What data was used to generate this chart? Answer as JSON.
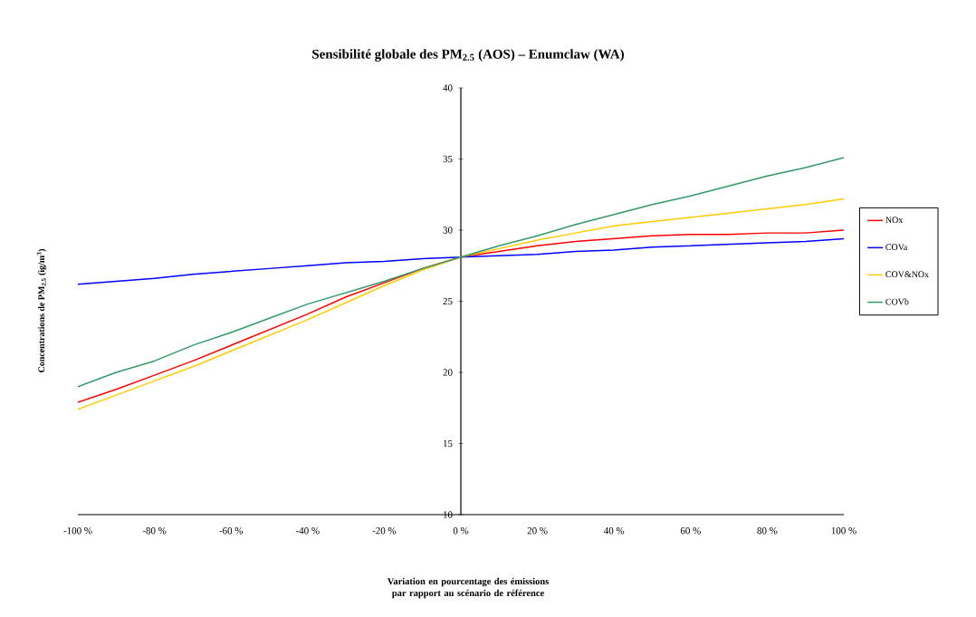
{
  "chart_data": {
    "type": "line",
    "title": "Sensibilité globale des PM$_{2.5}$ (AOS) – Enumclaw (WA)",
    "xlabel": "Variation en pourcentage des émissions par rapport au scénario de référence",
    "ylabel": "Concentrations de PM$_{2.5}$ (ìg/m$^{3}$)",
    "x": [
      -100,
      -90,
      -80,
      -70,
      -60,
      -50,
      -40,
      -30,
      -20,
      -10,
      0,
      10,
      20,
      30,
      40,
      50,
      60,
      70,
      80,
      90,
      100
    ],
    "series": [
      {
        "name": "NOx",
        "color": "#ff0000",
        "values": [
          17.9,
          18.8,
          19.8,
          20.8,
          21.9,
          23.0,
          24.1,
          25.3,
          26.3,
          27.3,
          28.1,
          28.5,
          28.9,
          29.2,
          29.4,
          29.6,
          29.7,
          29.7,
          29.8,
          29.8,
          30.0
        ]
      },
      {
        "name": "COVa",
        "color": "#0000ff",
        "values": [
          26.2,
          26.4,
          26.6,
          26.9,
          27.1,
          27.3,
          27.5,
          27.7,
          27.8,
          28.0,
          28.1,
          28.2,
          28.3,
          28.5,
          28.6,
          28.8,
          28.9,
          29.0,
          29.1,
          29.2,
          29.4
        ]
      },
      {
        "name": "COV&NOx",
        "color": "#ffcc00",
        "values": [
          17.4,
          18.4,
          19.4,
          20.4,
          21.5,
          22.6,
          23.7,
          24.9,
          26.1,
          27.2,
          28.1,
          28.7,
          29.3,
          29.8,
          30.3,
          30.6,
          30.9,
          31.2,
          31.5,
          31.8,
          32.2
        ]
      },
      {
        "name": "COVb",
        "color": "#339966",
        "values": [
          19.0,
          20.0,
          20.8,
          21.9,
          22.8,
          23.8,
          24.8,
          25.6,
          26.4,
          27.3,
          28.1,
          28.9,
          29.6,
          30.4,
          31.1,
          31.8,
          32.4,
          33.1,
          33.8,
          34.4,
          35.1
        ]
      }
    ],
    "xlim": [
      -100,
      100
    ],
    "xticks": [
      {
        "value": -100,
        "label": "-100 %"
      },
      {
        "value": -80,
        "label": "-80 %"
      },
      {
        "value": -60,
        "label": "-60 %"
      },
      {
        "value": -40,
        "label": "-40 %"
      },
      {
        "value": -20,
        "label": "-20 %"
      },
      {
        "value": 0,
        "label": "0 %"
      },
      {
        "value": 20,
        "label": "20 %"
      },
      {
        "value": 40,
        "label": "40 %"
      },
      {
        "value": 60,
        "label": "60 %"
      },
      {
        "value": 80,
        "label": "80 %"
      },
      {
        "value": 100,
        "label": "100 %"
      }
    ],
    "ylim": [
      10,
      40
    ],
    "yticks": [
      10,
      15,
      20,
      25,
      30,
      35,
      40
    ],
    "grid": false,
    "legend": "right",
    "marker": "none",
    "line_style": "solid"
  }
}
